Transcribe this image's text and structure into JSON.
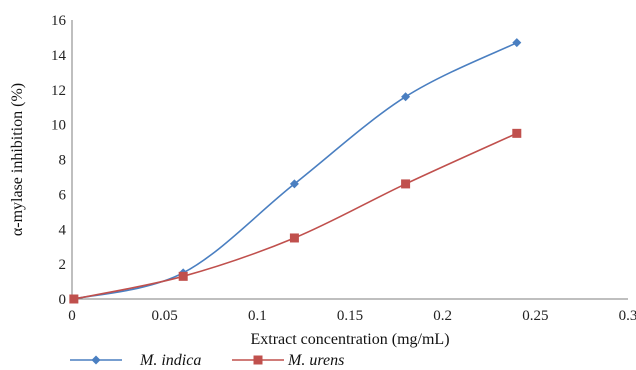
{
  "chart_data": {
    "type": "line",
    "xlabel": "Extract concentration (mg/mL)",
    "ylabel": "α-mylase inhibition (%)",
    "xlim": [
      0,
      0.3
    ],
    "ylim": [
      0,
      16
    ],
    "x_ticks": [
      "0",
      "0.05",
      "0.1",
      "0.15",
      "0.2",
      "0.25",
      "0.3"
    ],
    "y_ticks": [
      "0",
      "2",
      "4",
      "6",
      "8",
      "10",
      "12",
      "14",
      "16"
    ],
    "grid": false,
    "legend_position": "bottom-left",
    "series": [
      {
        "name": "M. indica",
        "color": "#4a7fc1",
        "marker": "diamond",
        "x": [
          0.001,
          0.06,
          0.12,
          0.18,
          0.24
        ],
        "y": [
          0,
          1.5,
          6.6,
          11.6,
          14.7
        ]
      },
      {
        "name": "M. urens",
        "color": "#c0504d",
        "marker": "square",
        "x": [
          0.001,
          0.06,
          0.12,
          0.18,
          0.24
        ],
        "y": [
          0,
          1.3,
          3.5,
          6.6,
          9.5
        ]
      }
    ]
  }
}
